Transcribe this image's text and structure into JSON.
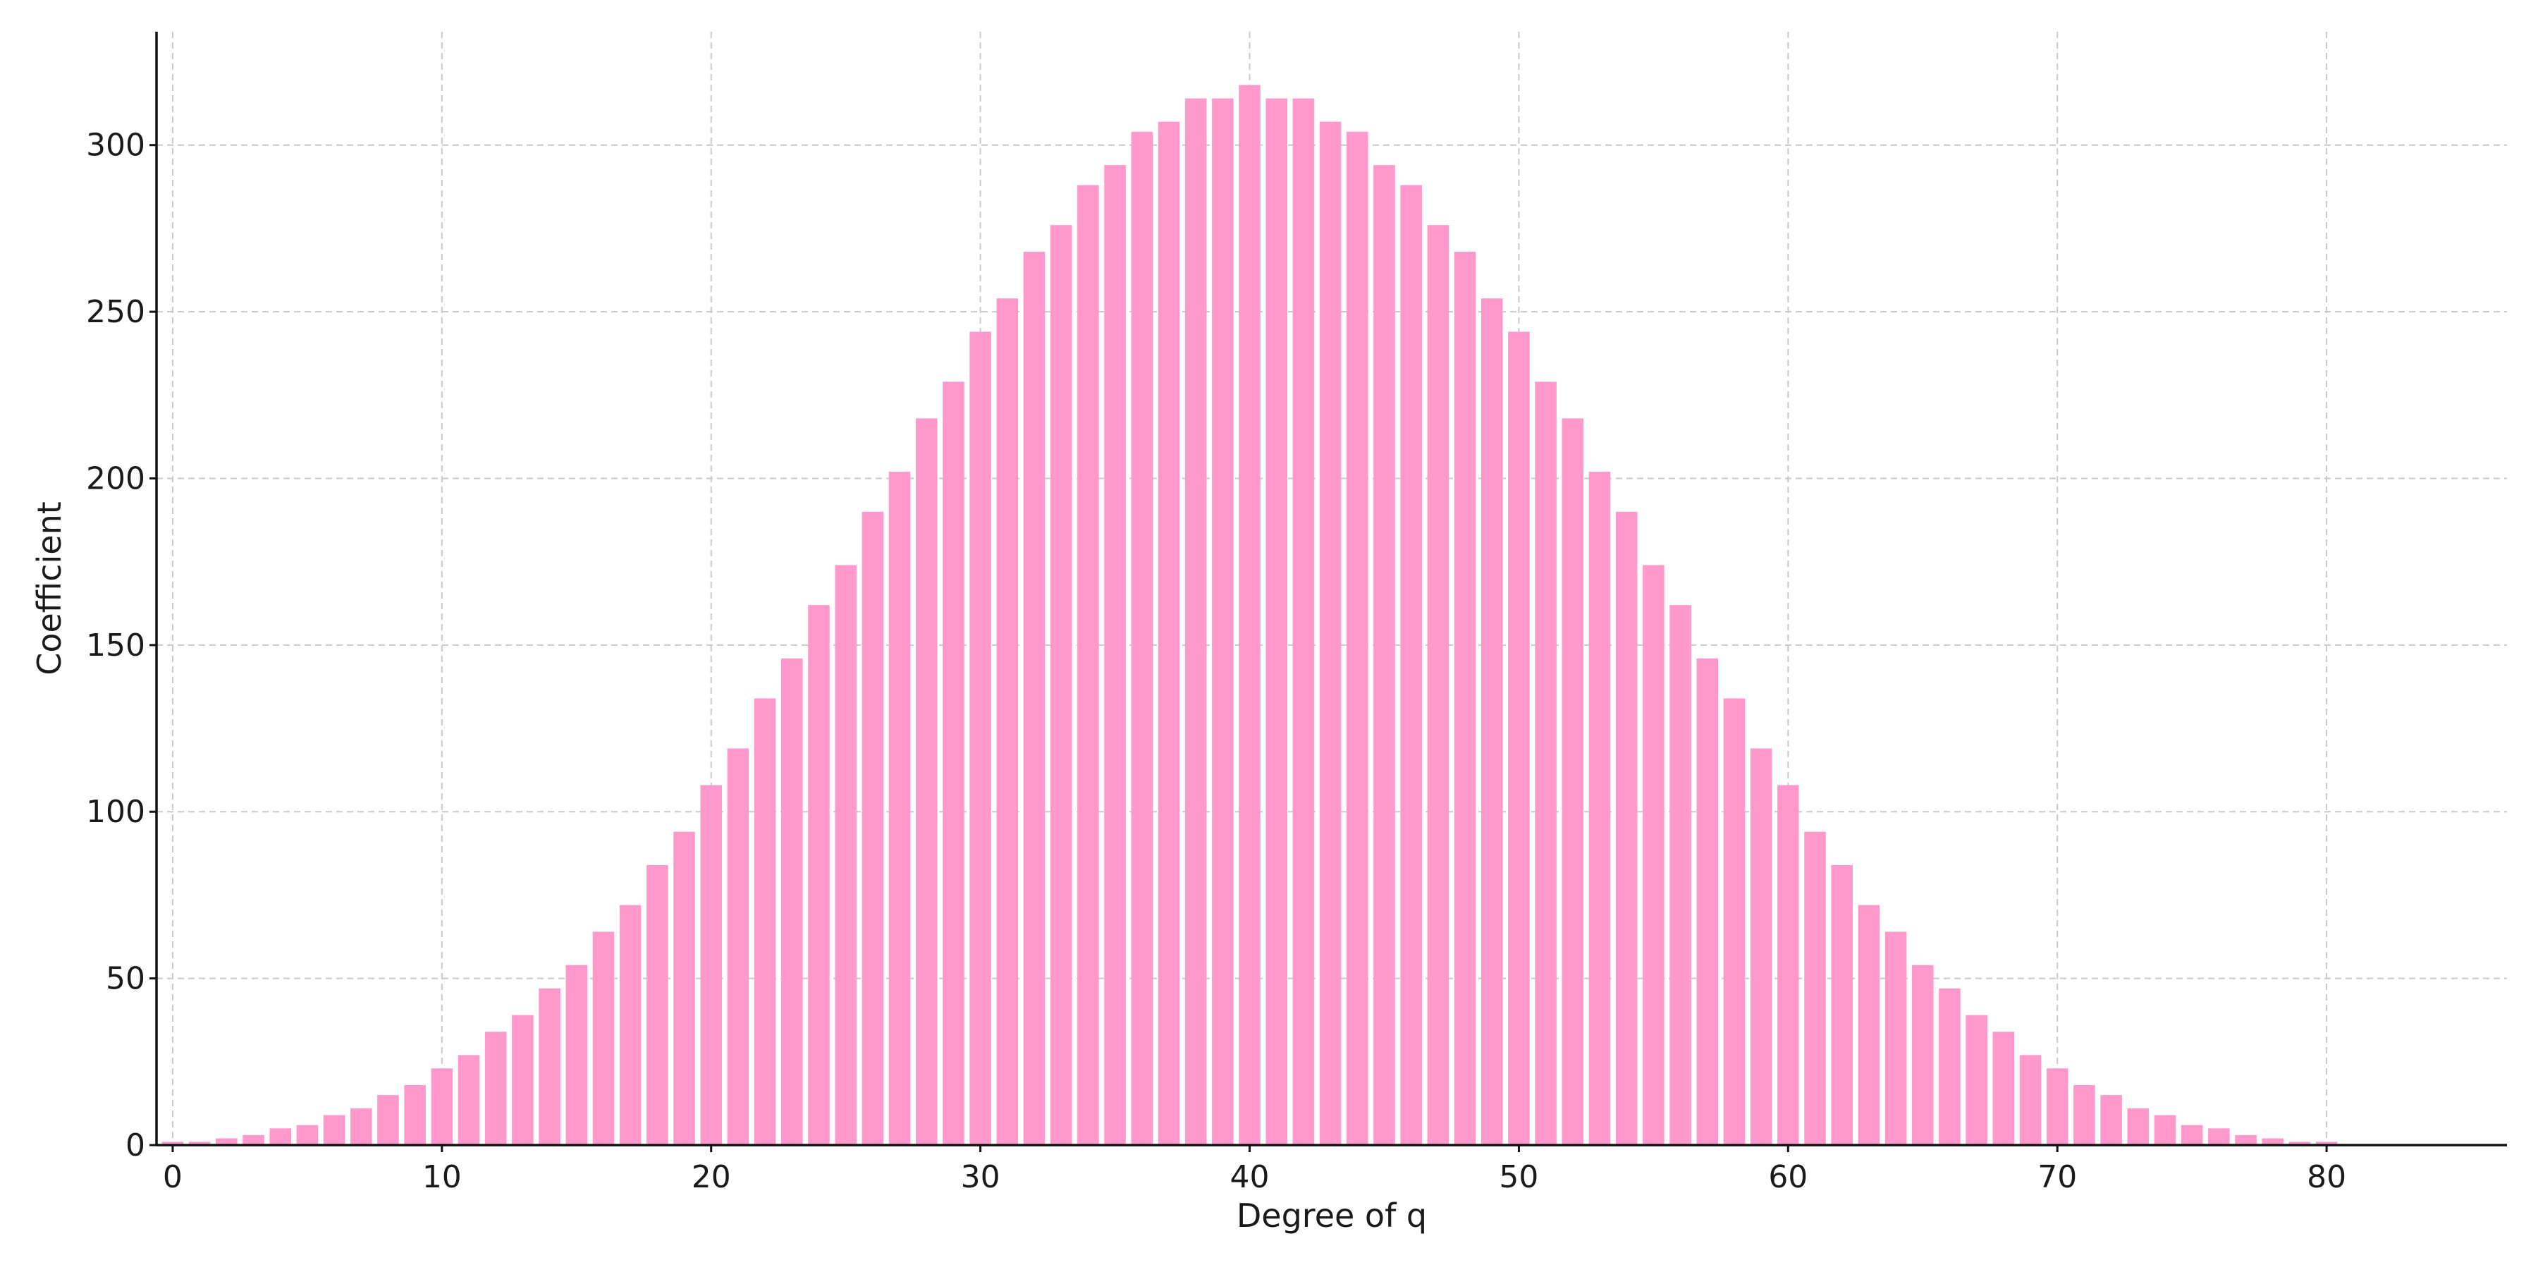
{
  "chart_data": {
    "type": "bar",
    "title": "",
    "xlabel": "Degree of q",
    "ylabel": "Coefficient",
    "x": [
      0,
      1,
      2,
      3,
      4,
      5,
      6,
      7,
      8,
      9,
      10,
      11,
      12,
      13,
      14,
      15,
      16,
      17,
      18,
      19,
      20,
      21,
      22,
      23,
      24,
      25,
      26,
      27,
      28,
      29,
      30,
      31,
      32,
      33,
      34,
      35,
      36,
      37,
      38,
      39,
      40,
      41,
      42,
      43,
      44,
      45,
      46,
      47,
      48,
      49,
      50,
      51,
      52,
      53,
      54,
      55,
      56,
      57,
      58,
      59,
      60,
      61,
      62,
      63,
      64,
      65,
      66,
      67,
      68,
      69,
      70,
      71,
      72,
      73,
      74,
      75,
      76,
      77,
      78,
      79,
      80
    ],
    "values": [
      1,
      1,
      2,
      3,
      5,
      6,
      9,
      11,
      15,
      18,
      23,
      27,
      34,
      39,
      47,
      54,
      64,
      72,
      84,
      94,
      108,
      119,
      134,
      146,
      162,
      174,
      190,
      202,
      218,
      229,
      244,
      254,
      268,
      276,
      288,
      294,
      304,
      307,
      314,
      314,
      318,
      314,
      314,
      307,
      304,
      294,
      288,
      276,
      268,
      254,
      244,
      229,
      218,
      202,
      190,
      174,
      162,
      146,
      134,
      119,
      108,
      94,
      84,
      72,
      64,
      54,
      47,
      39,
      34,
      27,
      23,
      18,
      15,
      11,
      9,
      6,
      5,
      3,
      2,
      1,
      1
    ],
    "xlim": [
      -0.6,
      86.7
    ],
    "ylim": [
      0,
      334
    ],
    "xticks": [
      0,
      10,
      20,
      30,
      40,
      50,
      60,
      70,
      80
    ],
    "yticks": [
      0,
      50,
      100,
      150,
      200,
      250,
      300
    ],
    "grid": true,
    "bar_color": "#ff99cc"
  }
}
